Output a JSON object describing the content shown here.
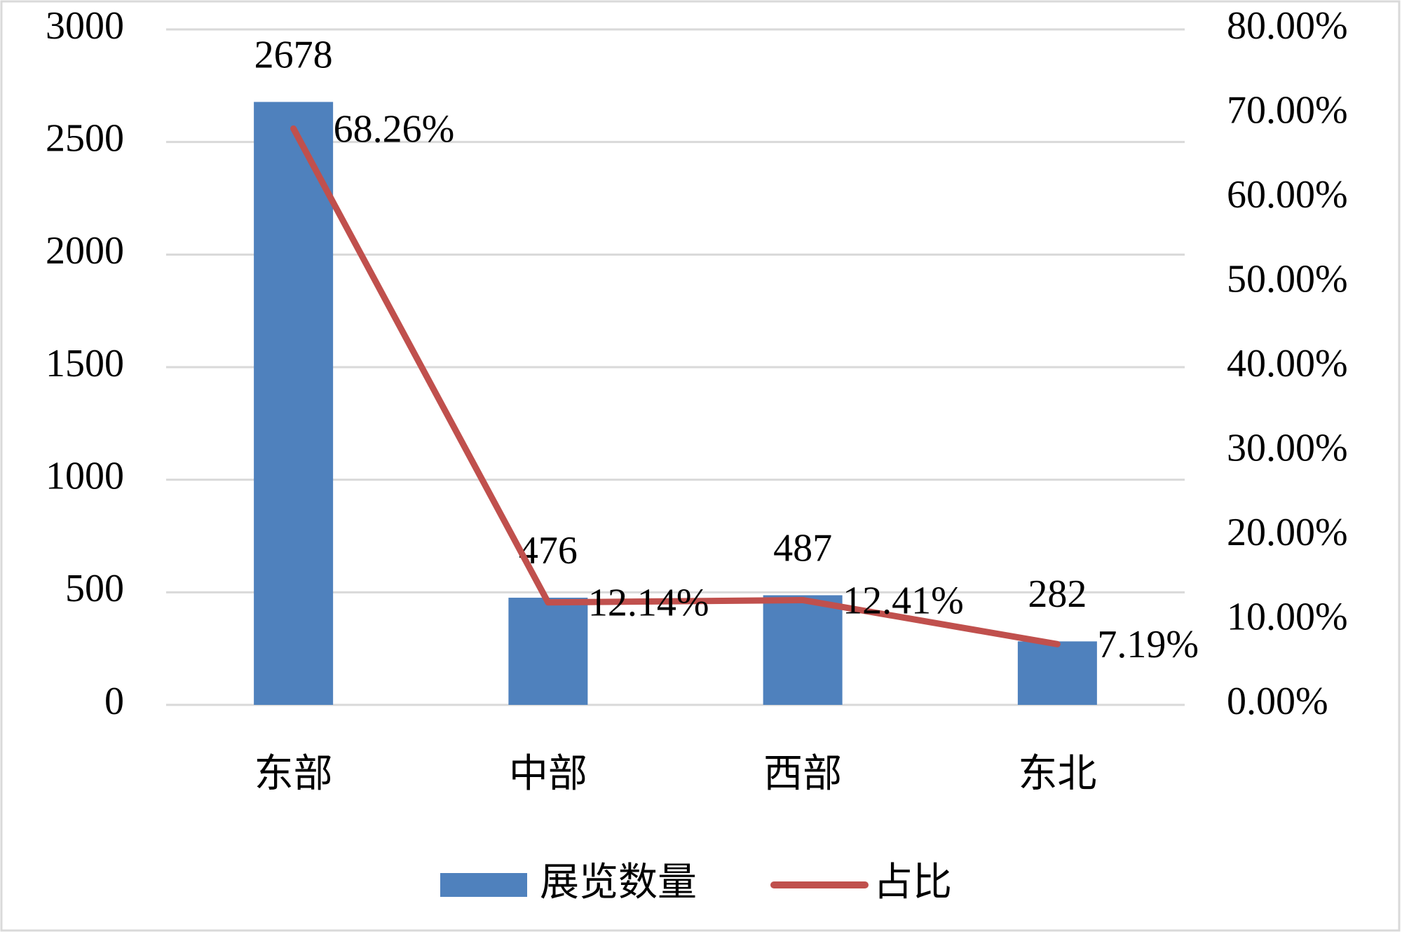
{
  "chart_data": {
    "type": "combo",
    "categories": [
      "东部",
      "中部",
      "西部",
      "东北"
    ],
    "series": [
      {
        "name": "展览数量",
        "type": "bar",
        "color": "#4f81bd",
        "values": [
          2678,
          476,
          487,
          282
        ]
      },
      {
        "name": "占比",
        "type": "line",
        "axis": "y2",
        "color": "#c0504d",
        "values": [
          68.26,
          12.14,
          12.41,
          7.19
        ],
        "value_labels": [
          "68.26%",
          "12.14%",
          "12.41%",
          "7.19%"
        ]
      }
    ],
    "ylim": [
      0,
      3000
    ],
    "yticks": [
      0,
      500,
      1000,
      1500,
      2000,
      2500,
      3000
    ],
    "y2lim": [
      0,
      80
    ],
    "y2ticks": [
      {
        "value": 0,
        "label": "0.00%"
      },
      {
        "value": 10,
        "label": "10.00%"
      },
      {
        "value": 20,
        "label": "20.00%"
      },
      {
        "value": 30,
        "label": "30.00%"
      },
      {
        "value": 40,
        "label": "40.00%"
      },
      {
        "value": 50,
        "label": "50.00%"
      },
      {
        "value": 60,
        "label": "60.00%"
      },
      {
        "value": 70,
        "label": "70.00%"
      },
      {
        "value": 80,
        "label": "80.00%"
      }
    ],
    "grid": true,
    "legend": "bottom"
  }
}
